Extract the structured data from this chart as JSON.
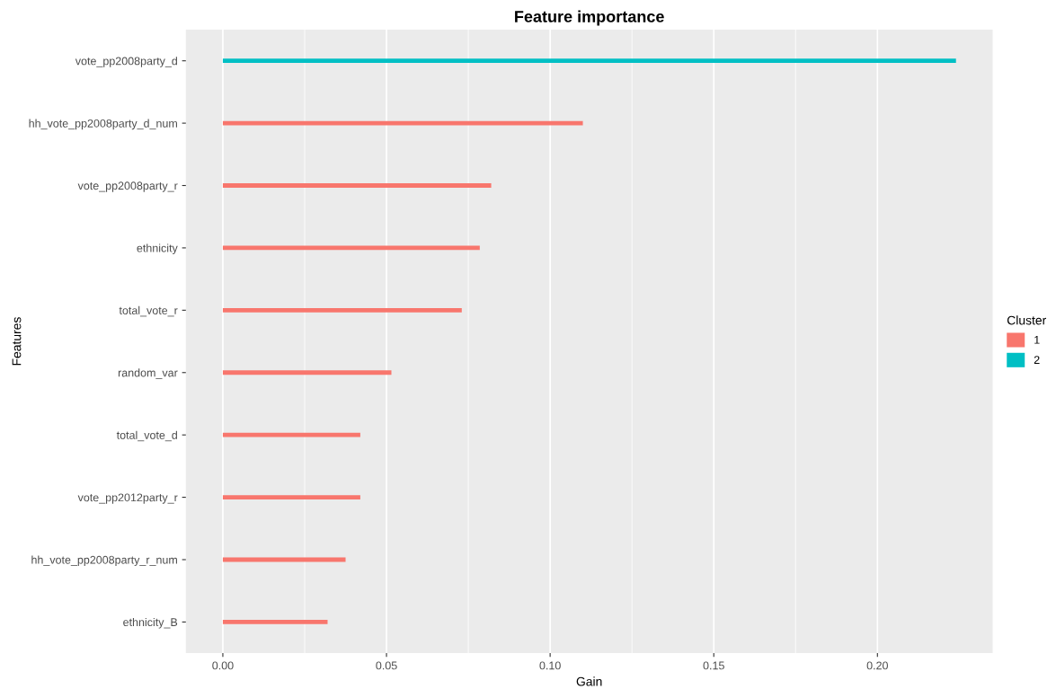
{
  "chart_data": {
    "type": "bar",
    "orientation": "horizontal",
    "title": "Feature importance",
    "xlabel": "Gain",
    "ylabel": "Features",
    "legend_title": "Cluster",
    "legend": "right",
    "grid": "x",
    "categories": [
      "vote_pp2008party_d",
      "hh_vote_pp2008party_d_num",
      "vote_pp2008party_r",
      "ethnicity",
      "total_vote_r",
      "random_var",
      "total_vote_d",
      "vote_pp2012party_r",
      "hh_vote_pp2008party_r_num",
      "ethnicity_B"
    ],
    "series": [
      {
        "name": "1",
        "color": "#f8766d",
        "values": [
          null,
          0.11,
          0.082,
          0.0785,
          0.073,
          0.0515,
          0.042,
          0.042,
          0.0375,
          0.032
        ]
      },
      {
        "name": "2",
        "color": "#00bfc4",
        "values": [
          0.224,
          null,
          null,
          null,
          null,
          null,
          null,
          null,
          null,
          null
        ]
      }
    ],
    "xlim": [
      -0.0113,
      0.2352
    ],
    "xticks": [
      {
        "value": 0,
        "label": "0.00"
      },
      0.05,
      {
        "value": 0.1,
        "label": "0.10"
      },
      0.15,
      {
        "value": 0.2,
        "label": "0.20"
      }
    ]
  }
}
